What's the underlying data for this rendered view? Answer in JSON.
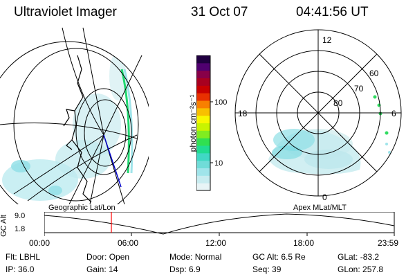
{
  "header": {
    "title": "Ultraviolet Imager",
    "date": "31 Oct 07",
    "time": "04:41:56 UT"
  },
  "colorbar": {
    "unit_label": "photon cm⁻²s⁻¹",
    "ticks": [
      "100",
      "10"
    ],
    "colors": [
      "#e8f4f6",
      "#c8ecf0",
      "#a0e4ea",
      "#70dcd8",
      "#40d8c4",
      "#20dc90",
      "#30e050",
      "#80ec20",
      "#c8f400",
      "#f8f800",
      "#f8c000",
      "#f88000",
      "#e83000",
      "#c80000",
      "#a80020",
      "#880048",
      "#500070",
      "#200040"
    ]
  },
  "geo_panel": {
    "label": "Geographic Lat/Lon"
  },
  "polar_panel": {
    "label": "Apex MLat/MLT",
    "mlt_labels": {
      "top": "12",
      "left": "18",
      "right": "6",
      "bottom": "0"
    },
    "lat_labels": [
      "60",
      "70",
      "80"
    ]
  },
  "altitude_plot": {
    "ylabel": "GC Alt",
    "y_ticks": [
      "9.0",
      "1.8"
    ],
    "x_ticks": [
      "00:00",
      "06:00",
      "12:00",
      "18:00",
      "23:59"
    ],
    "current_marker_color": "#ff0000"
  },
  "info": {
    "row1": [
      {
        "label": "Flt:",
        "value": "LBHL"
      },
      {
        "label": "Door:",
        "value": "Open"
      },
      {
        "label": "Mode:",
        "value": "Normal"
      },
      {
        "label": "GC Alt:",
        "value": "6.5 Re"
      },
      {
        "label": "GLat:",
        "value": "-83.2"
      }
    ],
    "row2": [
      {
        "label": "IP:",
        "value": "36.0"
      },
      {
        "label": "Gain:",
        "value": "14"
      },
      {
        "label": "Dsp:",
        "value": "6.9"
      },
      {
        "label": "Seq:",
        "value": "39"
      },
      {
        "label": "GLon:",
        "value": "257.8"
      }
    ]
  }
}
